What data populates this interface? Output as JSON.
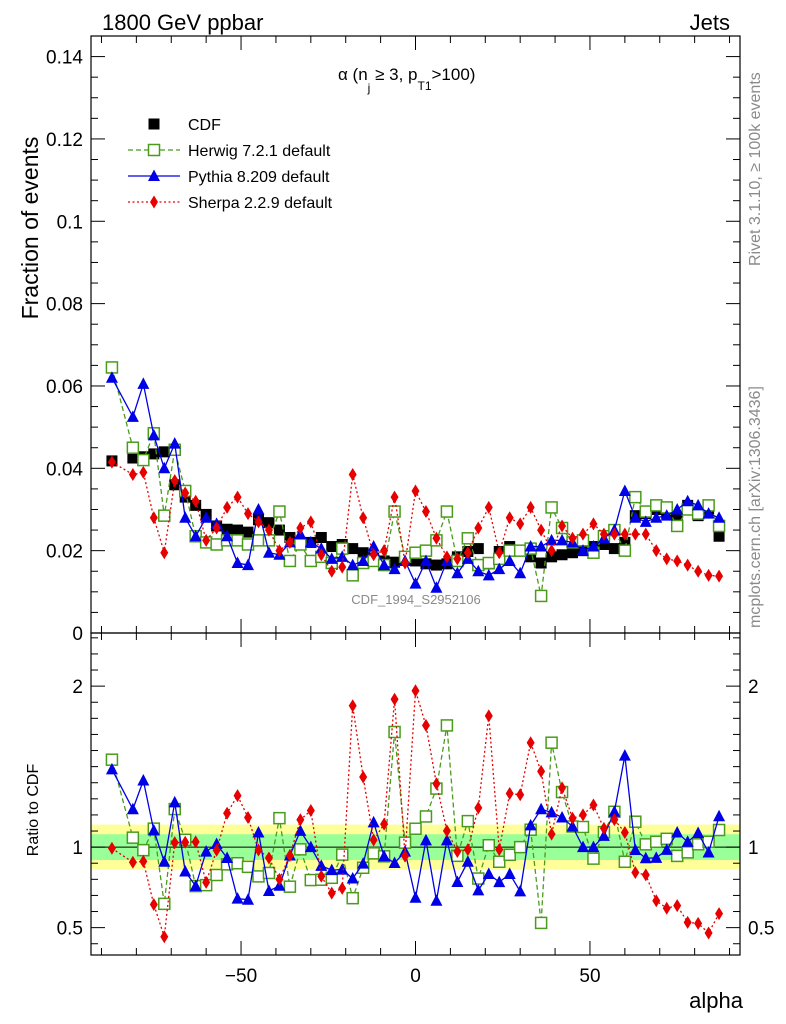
{
  "header": {
    "left": "1800 GeV ppbar",
    "right": "Jets"
  },
  "side_labels": {
    "rivet": "Rivet 3.1.10, ≥ 100k events",
    "mcplots": "mcplots.cern.ch [arXiv:1306.3436]"
  },
  "watermark": "CDF_1994_S2952106",
  "plot_title": {
    "main": "α (n",
    "sub1": "j",
    "mid": " ≥ 3, p",
    "sub2": "T1",
    "tail": ">100)"
  },
  "ylabel_main": "Fraction of events",
  "ylabel_ratio": "Ratio to CDF",
  "xlabel": "alpha",
  "chart_data": {
    "type": "scatter",
    "x": [
      -87,
      -81,
      -78,
      -75,
      -72,
      -69,
      -66,
      -63,
      -60,
      -57,
      -54,
      -51,
      -48,
      -45,
      -42,
      -39,
      -36,
      -33,
      -30,
      -27,
      -24,
      -21,
      -18,
      -15,
      -12,
      -9,
      -6,
      -3,
      0,
      3,
      6,
      9,
      12,
      15,
      18,
      21,
      24,
      27,
      30,
      33,
      36,
      39,
      42,
      45,
      48,
      51,
      54,
      57,
      60,
      63,
      66,
      69,
      72,
      75,
      78,
      81,
      84,
      87
    ],
    "main": {
      "ylim": [
        0,
        0.145
      ],
      "yticks": [
        0,
        0.02,
        0.04,
        0.06,
        0.08,
        0.1,
        0.12,
        0.14
      ],
      "ytick_labels": [
        "0",
        "0.02",
        "0.04",
        "0.06",
        "0.08",
        "0.1",
        "0.12",
        "0.14"
      ]
    },
    "ratio": {
      "ylim": [
        0.33,
        2.33
      ],
      "yticks": [
        0.5,
        1,
        2
      ],
      "ytick_labels": [
        "0.5",
        "1",
        "2"
      ],
      "band_yellow": [
        0.86,
        1.14
      ],
      "band_green": [
        0.92,
        1.08
      ]
    },
    "xlim": [
      -93,
      93
    ],
    "xticks": [
      -50,
      0,
      50
    ],
    "xtick_labels": [
      "−50",
      "0",
      "50"
    ],
    "legend_position": "top-left",
    "series": [
      {
        "name": "CDF",
        "color": "#000000",
        "marker": "square-filled",
        "line": "none",
        "values": [
          0.0418,
          0.0425,
          0.0428,
          0.0435,
          0.044,
          0.036,
          0.033,
          0.031,
          0.0288,
          0.026,
          0.0252,
          0.025,
          0.0245,
          0.0275,
          0.0268,
          0.025,
          0.0232,
          0.0218,
          0.022,
          0.0232,
          0.021,
          0.0215,
          0.0205,
          0.0195,
          0.0182,
          0.0175,
          0.0172,
          0.018,
          0.0175,
          0.0168,
          0.0165,
          0.0168,
          0.0185,
          0.0198,
          0.0205,
          0.0168,
          0.0198,
          0.021,
          0.02,
          0.0185,
          0.017,
          0.0185,
          0.019,
          0.0195,
          0.02,
          0.021,
          0.0215,
          0.0205,
          0.022,
          0.0285,
          0.029,
          0.03,
          0.029,
          0.0275,
          0.031,
          0.0285,
          0.03,
          0.0235
        ]
      },
      {
        "name": "Herwig 7.2.1 default",
        "color": "#4a9b1c",
        "marker": "square-open",
        "line": "dashed",
        "values": [
          0.0645,
          0.045,
          0.042,
          0.0485,
          0.0285,
          0.0445,
          0.0345,
          0.0235,
          0.022,
          0.0215,
          0.0225,
          0.0225,
          0.0215,
          0.0225,
          0.0225,
          0.0295,
          0.0175,
          0.0215,
          0.0175,
          0.0185,
          0.017,
          0.0205,
          0.014,
          0.017,
          0.0175,
          0.0165,
          0.0295,
          0.0185,
          0.0195,
          0.02,
          0.0225,
          0.0295,
          0.0175,
          0.023,
          0.0165,
          0.017,
          0.018,
          0.02,
          0.02,
          0.0205,
          0.009,
          0.0305,
          0.0255,
          0.022,
          0.0225,
          0.0195,
          0.0235,
          0.025,
          0.02,
          0.033,
          0.0295,
          0.031,
          0.0305,
          0.026,
          0.03,
          0.029,
          0.031,
          0.026
        ]
      },
      {
        "name": "Pythia 8.209 default",
        "color": "#0000e6",
        "marker": "triangle-filled",
        "line": "solid",
        "values": [
          0.062,
          0.0525,
          0.0605,
          0.048,
          0.04,
          0.046,
          0.028,
          0.0235,
          0.028,
          0.0265,
          0.0235,
          0.017,
          0.0165,
          0.03,
          0.0195,
          0.019,
          0.022,
          0.024,
          0.022,
          0.0205,
          0.018,
          0.0185,
          0.0165,
          0.0175,
          0.021,
          0.0165,
          0.0155,
          0.0175,
          0.012,
          0.0175,
          0.011,
          0.0175,
          0.0145,
          0.018,
          0.015,
          0.014,
          0.0155,
          0.0175,
          0.0145,
          0.021,
          0.021,
          0.0225,
          0.0225,
          0.022,
          0.02,
          0.021,
          0.023,
          0.025,
          0.0345,
          0.028,
          0.027,
          0.028,
          0.0285,
          0.03,
          0.032,
          0.031,
          0.029,
          0.028
        ]
      },
      {
        "name": "Sherpa 2.2.9 default",
        "color": "#e60000",
        "marker": "diamond-filled",
        "line": "dotted",
        "values": [
          0.0415,
          0.0385,
          0.039,
          0.028,
          0.0195,
          0.037,
          0.034,
          0.032,
          0.0225,
          0.0255,
          0.0305,
          0.033,
          0.029,
          0.027,
          0.025,
          0.02,
          0.022,
          0.0255,
          0.027,
          0.019,
          0.015,
          0.016,
          0.0385,
          0.028,
          0.019,
          0.02,
          0.033,
          0.017,
          0.0345,
          0.0295,
          0.023,
          0.0185,
          0.018,
          0.0195,
          0.0255,
          0.0305,
          0.0195,
          0.028,
          0.0265,
          0.0305,
          0.025,
          0.02,
          0.026,
          0.023,
          0.024,
          0.0265,
          0.024,
          0.024,
          0.024,
          0.024,
          0.024,
          0.02,
          0.018,
          0.0175,
          0.0165,
          0.015,
          0.014,
          0.0138
        ]
      }
    ]
  }
}
